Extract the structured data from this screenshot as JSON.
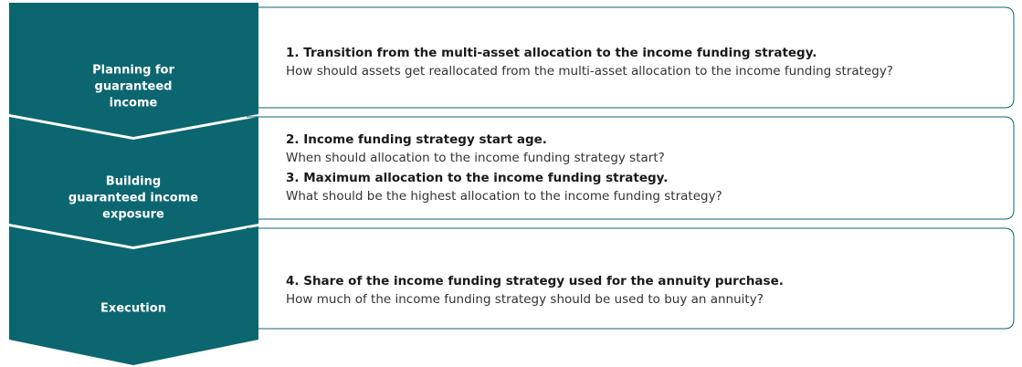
{
  "steps": [
    {
      "label_lines": [
        "Planning for",
        "guaranteed",
        "income"
      ],
      "items": [
        {
          "heading": "1. Transition from the multi-asset allocation to the income funding strategy.",
          "question": "How should assets get reallocated from the multi-asset allocation to the income funding strategy?"
        }
      ]
    },
    {
      "label_lines": [
        "Building",
        "guaranteed income",
        "exposure"
      ],
      "items": [
        {
          "heading": "2. Income funding strategy start age.",
          "question": "When should allocation to the income funding strategy start?"
        },
        {
          "heading": "3. Maximum allocation to the income funding strategy.",
          "question": "What should be the highest allocation to the income funding strategy?"
        }
      ]
    },
    {
      "label_lines": [
        "Execution"
      ],
      "items": [
        {
          "heading": "4. Share of the income funding strategy used for the annuity purchase.",
          "question": "How much of the income funding strategy should be used to buy an annuity?"
        }
      ]
    }
  ]
}
